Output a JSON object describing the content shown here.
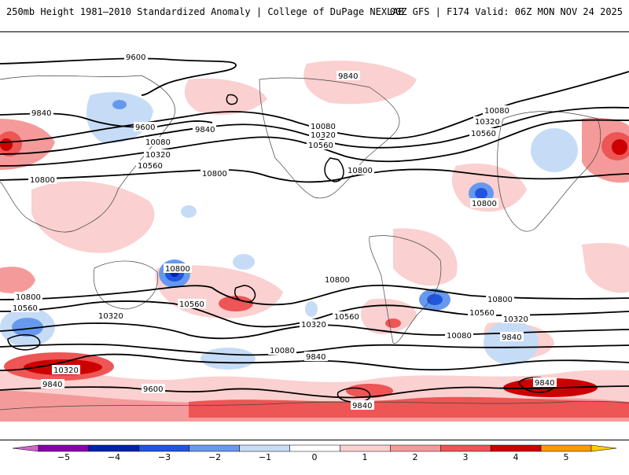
{
  "header": {
    "left_title": "250mb Height 1981–2010 Standardized Anomaly | College of DuPage NEXLAB",
    "right_title": "00Z GFS | F174 Valid: 06Z MON NOV 24 2025"
  },
  "map": {
    "contour_labels": [
      "9600",
      "9840",
      "9840",
      "9840",
      "9600",
      "10080",
      "10320",
      "10560",
      "10800",
      "10080",
      "10320",
      "10560",
      "10800",
      "10080",
      "10320",
      "10560",
      "10800",
      "10800",
      "10800",
      "10560",
      "10320",
      "10080",
      "10800",
      "10560",
      "10320",
      "10800",
      "10560",
      "10320",
      "10080",
      "9840",
      "9840",
      "9600",
      "9840",
      "10800",
      "10560",
      "10320",
      "10080",
      "9840",
      "9840",
      "9840"
    ]
  },
  "colorbar": {
    "ticks": [
      "−5",
      "−4",
      "−3",
      "−2",
      "−1",
      "0",
      "1",
      "2",
      "3",
      "4",
      "5"
    ],
    "colors": [
      "#cc66cc",
      "#8800aa",
      "#0022aa",
      "#2255dd",
      "#6699ee",
      "#c6dcf6",
      "#ffffff",
      "#fbd0d0",
      "#f59a9a",
      "#ee5555",
      "#cc0000",
      "#ff9900",
      "#ffcc00"
    ]
  }
}
